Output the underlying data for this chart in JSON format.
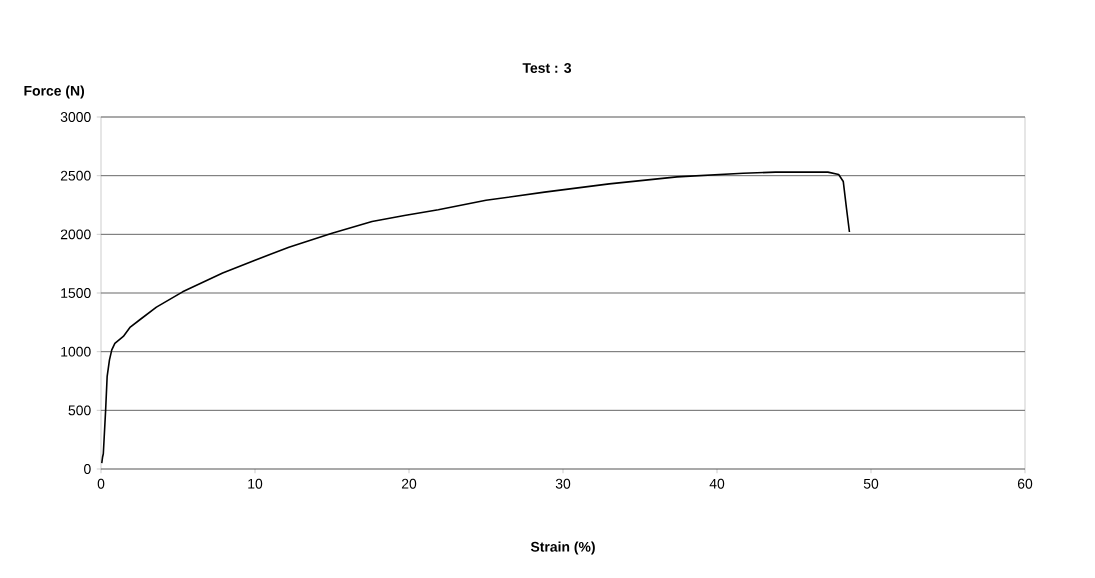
{
  "chart_data": {
    "type": "line",
    "title": "Test : 3",
    "xlabel": "Strain (%)",
    "ylabel": "Force (N)",
    "xlim": [
      0,
      60
    ],
    "xticks": [
      0,
      10,
      20,
      30,
      40,
      50,
      60
    ],
    "ylim": [
      0,
      3000
    ],
    "yticks": [
      0,
      500,
      1000,
      1500,
      2000,
      2500,
      3000
    ],
    "grid": "y",
    "series": [
      {
        "color": "#000000",
        "x": [
          0.05,
          0.1,
          0.15,
          0.3,
          0.4,
          0.55,
          0.7,
          0.9,
          1.45,
          1.9,
          2.5,
          3.6,
          5.3,
          7.9,
          10,
          12.2,
          15,
          17.6,
          19.7,
          21.9,
          25,
          28.8,
          33,
          37.4,
          41.7,
          43.8,
          47.2,
          47.9,
          48.2,
          48.4,
          48.6
        ],
        "values": [
          50,
          100,
          130,
          500,
          790,
          930,
          1015,
          1070,
          1130,
          1210,
          1270,
          1380,
          1510,
          1670,
          1780,
          1890,
          2010,
          2110,
          2160,
          2210,
          2290,
          2360,
          2430,
          2490,
          2520,
          2530,
          2530,
          2510,
          2450,
          2230,
          2020
        ]
      }
    ]
  }
}
